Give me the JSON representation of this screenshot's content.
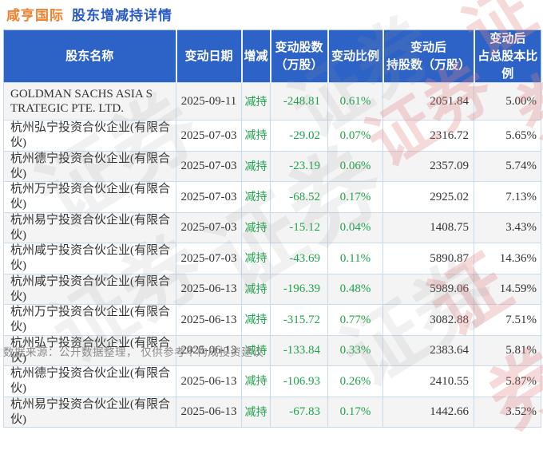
{
  "title": {
    "stock_name": "咸亨国际",
    "subtitle": "股东增减持详情"
  },
  "colors": {
    "header_bg": "#2d63c6",
    "decrease_green": "#1fa34b",
    "title_orange": "#f2802d",
    "title_blue": "#2a5cc5"
  },
  "watermark": {
    "text": "证券"
  },
  "footer": {
    "note": "数据来源：公开数据整理， 仅供参考不构成投资建议"
  },
  "chart_data": {
    "type": "table",
    "title": "咸亨国际 股东增减持详情",
    "columns": [
      {
        "line1": "股东名称",
        "line2": ""
      },
      {
        "line1": "变动日期",
        "line2": ""
      },
      {
        "line1": "增减",
        "line2": ""
      },
      {
        "line1": "变动股数",
        "line2": "（万股）"
      },
      {
        "line1": "变动比例",
        "line2": ""
      },
      {
        "line1": "变动后",
        "line2": "持股数（万股）"
      },
      {
        "line1": "变动后",
        "line2": "占总股本比例"
      }
    ],
    "rows": [
      [
        "GOLDMAN SACHS ASIA S TRATEGIC PTE. LTD.",
        "2025-09-11",
        "减持",
        "-248.81",
        "0.61%",
        "2051.84",
        "5.00%"
      ],
      [
        "杭州弘宁投资合伙企业(有限合伙)",
        "2025-07-03",
        "减持",
        "-29.02",
        "0.07%",
        "2316.72",
        "5.65%"
      ],
      [
        "杭州德宁投资合伙企业(有限合伙)",
        "2025-07-03",
        "减持",
        "-23.19",
        "0.06%",
        "2357.09",
        "5.74%"
      ],
      [
        "杭州万宁投资合伙企业(有限合伙)",
        "2025-07-03",
        "减持",
        "-68.52",
        "0.17%",
        "2925.02",
        "7.13%"
      ],
      [
        "杭州易宁投资合伙企业(有限合伙)",
        "2025-07-03",
        "减持",
        "-15.12",
        "0.04%",
        "1408.75",
        "3.43%"
      ],
      [
        "杭州咸宁投资合伙企业(有限合伙)",
        "2025-07-03",
        "减持",
        "-43.69",
        "0.11%",
        "5890.87",
        "14.36%"
      ],
      [
        "杭州咸宁投资合伙企业(有限合伙)",
        "2025-06-13",
        "减持",
        "-196.39",
        "0.48%",
        "5989.06",
        "14.59%"
      ],
      [
        "杭州万宁投资合伙企业(有限合伙)",
        "2025-06-13",
        "减持",
        "-315.72",
        "0.77%",
        "3082.88",
        "7.51%"
      ],
      [
        "杭州弘宁投资合伙企业(有限合伙)",
        "2025-06-13",
        "减持",
        "-133.84",
        "0.33%",
        "2383.64",
        "5.81%"
      ],
      [
        "杭州德宁投资合伙企业(有限合伙)",
        "2025-06-13",
        "减持",
        "-106.93",
        "0.26%",
        "2410.55",
        "5.87%"
      ],
      [
        "杭州易宁投资合伙企业(有限合伙)",
        "2025-06-13",
        "减持",
        "-67.83",
        "0.17%",
        "1442.66",
        "3.52%"
      ]
    ]
  }
}
